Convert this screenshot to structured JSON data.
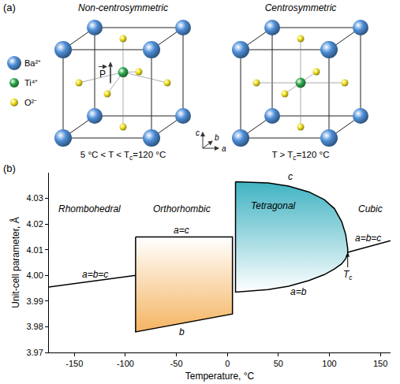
{
  "panel_a": {
    "label": "(a)",
    "ions": [
      {
        "label": "Ba²⁺",
        "color": "#4f8fd8"
      },
      {
        "label": "Ti⁴⁺",
        "color": "#2ea84a"
      },
      {
        "label": "O²⁻",
        "color": "#f0e020"
      }
    ],
    "axes": [
      "a",
      "b",
      "c"
    ],
    "cells": [
      {
        "title": "Non-centrosymmetric",
        "polar": true,
        "vector_label": "P",
        "caption": [
          {
            "text": "5 °C < T < T"
          },
          {
            "text": "c",
            "sub": true
          },
          {
            "text": "=120 °C"
          }
        ]
      },
      {
        "title": "Centrosymmetric",
        "polar": false,
        "caption": [
          {
            "text": "T > T"
          },
          {
            "text": "c",
            "sub": true
          },
          {
            "text": "=120 °C"
          }
        ]
      }
    ]
  },
  "chart_data": {
    "type": "line",
    "label": "(b)",
    "x_title": "Temperature, °C",
    "y_title": "Unit-cell parameter, Å",
    "xlim": [
      -175,
      160
    ],
    "xticks": [
      -150,
      -100,
      -50,
      0,
      50,
      100,
      150
    ],
    "ylim": [
      3.97,
      4.04
    ],
    "yticks": [
      3.97,
      3.98,
      3.99,
      {
        "value": 4,
        "label": "4.00"
      },
      4.01,
      4.02,
      4.03
    ],
    "grid": false,
    "phases": [
      {
        "name": "Rhombohedral",
        "name_x": -135,
        "name_y": 4.026,
        "lines": [
          {
            "x": [
              -175,
              -90
            ],
            "values": [
              3.9955,
              4.0
            ],
            "label": "a=b=c",
            "label_x": -130,
            "label_y": 4.0003
          }
        ]
      },
      {
        "name": "Orthorhombic",
        "name_x": -45,
        "name_y": 4.026,
        "colors": [
          "#f5b461",
          "#ffffff"
        ],
        "lines": [
          {
            "x": [
              -90,
              5
            ],
            "values": [
              4.015,
              4.015
            ],
            "label": "a=c",
            "label_x": -45,
            "label_y": 4.0175
          },
          {
            "x": [
              -90,
              5
            ],
            "values": [
              3.978,
              3.985
            ],
            "label": "b",
            "label_x": -45,
            "label_y": 3.978
          }
        ]
      },
      {
        "name": "Tetragonal",
        "name_x": 45,
        "name_y": 4.027,
        "colors": [
          "#ffffff",
          "#40b3c2"
        ],
        "lines": [
          {
            "x": [
              8,
              20,
              40,
              60,
              80,
              95,
              105,
              112,
              116,
              118
            ],
            "values": [
              4.0365,
              4.0364,
              4.036,
              4.0348,
              4.0325,
              4.0295,
              4.026,
              4.021,
              4.016,
              4.0105
            ],
            "label": "c",
            "label_x": 62,
            "label_y": 4.0385
          },
          {
            "x": [
              8,
              20,
              40,
              60,
              80,
              95,
              105,
              112,
              116,
              118
            ],
            "values": [
              3.9935,
              3.9938,
              3.9945,
              3.9958,
              3.998,
              4.0003,
              4.0025,
              4.0045,
              4.0065,
              4.0085
            ],
            "label": "a=b",
            "label_x": 70,
            "label_y": 3.9935
          }
        ]
      },
      {
        "name": "Cubic",
        "name_x": 140,
        "name_y": 4.026,
        "lines": [
          {
            "x": [
              118,
              160
            ],
            "values": [
              4.009,
              4.0135
            ],
            "label": "a=b=c",
            "label_x": 138,
            "label_y": 4.0145
          }
        ]
      }
    ],
    "marker_label": {
      "text": "T",
      "subscript": "c",
      "x": 118,
      "y": 4.0088
    }
  }
}
